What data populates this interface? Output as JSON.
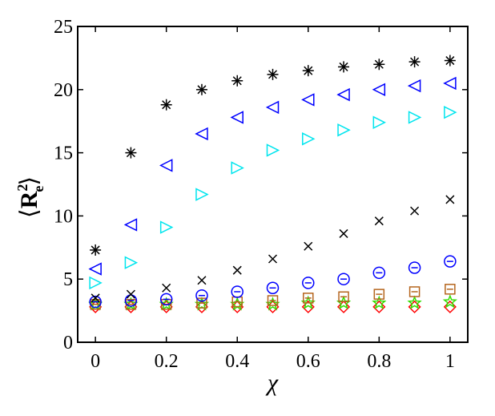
{
  "chart_data": {
    "type": "scatter",
    "xlabel": "χ",
    "ylabel": {
      "open": "⟨",
      "base": "R",
      "sup": "2",
      "sub": "e",
      "close": "⟩"
    },
    "xlim": [
      -0.05,
      1.05
    ],
    "ylim": [
      0,
      25
    ],
    "x_ticks": [
      0,
      0.2,
      0.4,
      0.6,
      0.8,
      1
    ],
    "x_tick_labels": [
      "0",
      "0.2",
      "0.4",
      "0.6",
      "0.8",
      "1"
    ],
    "y_ticks": [
      0,
      5,
      10,
      15,
      20,
      25
    ],
    "y_tick_labels": [
      "0",
      "5",
      "10",
      "15",
      "20",
      "25"
    ],
    "grid": false,
    "legend": false,
    "x": [
      0,
      0.1,
      0.2,
      0.3,
      0.4,
      0.5,
      0.6,
      0.7,
      0.8,
      0.9,
      1
    ],
    "series": [
      {
        "marker": "asterisk",
        "color": "#000000",
        "values": [
          7.3,
          15.0,
          18.8,
          20.0,
          20.7,
          21.2,
          21.5,
          21.8,
          22.0,
          22.2,
          22.3
        ]
      },
      {
        "marker": "triangle-left",
        "color": "#0000ff",
        "values": [
          5.8,
          9.3,
          14.0,
          16.5,
          17.8,
          18.6,
          19.2,
          19.6,
          20.0,
          20.3,
          20.5
        ]
      },
      {
        "marker": "triangle-right",
        "color": "#00e5ee",
        "values": [
          4.7,
          6.3,
          9.1,
          11.7,
          13.8,
          15.2,
          16.1,
          16.8,
          17.4,
          17.8,
          18.2
        ]
      },
      {
        "marker": "x",
        "color": "#000000",
        "values": [
          3.5,
          3.8,
          4.3,
          4.9,
          5.7,
          6.6,
          7.6,
          8.6,
          9.6,
          10.4,
          11.3
        ]
      },
      {
        "marker": "circle-minus",
        "color": "#0000ff",
        "values": [
          3.2,
          3.3,
          3.4,
          3.7,
          4.0,
          4.3,
          4.7,
          5.0,
          5.5,
          5.9,
          6.4
        ]
      },
      {
        "marker": "square-minus",
        "color": "#b5651d",
        "values": [
          3.0,
          3.0,
          3.0,
          3.1,
          3.2,
          3.3,
          3.5,
          3.6,
          3.8,
          4.0,
          4.2
        ]
      },
      {
        "marker": "star",
        "color": "#33dd00",
        "values": [
          3.0,
          3.0,
          3.0,
          3.0,
          3.0,
          3.0,
          3.1,
          3.1,
          3.1,
          3.1,
          3.2
        ]
      },
      {
        "marker": "diamond",
        "color": "#ff0000",
        "values": [
          2.8,
          2.8,
          2.8,
          2.8,
          2.8,
          2.8,
          2.8,
          2.8,
          2.8,
          2.8,
          2.8
        ]
      }
    ]
  }
}
